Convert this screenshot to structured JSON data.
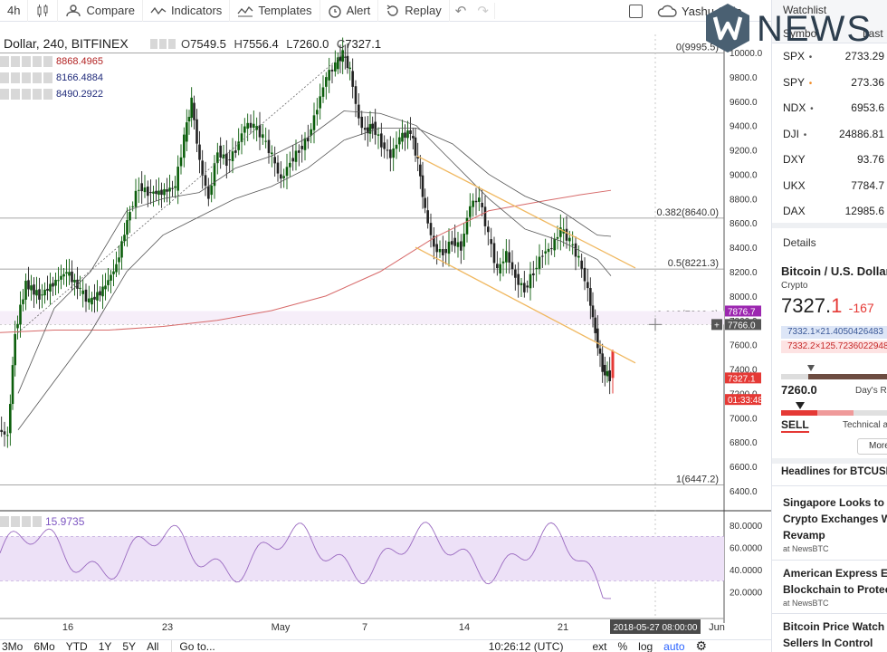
{
  "toolbar": {
    "interval": "4h",
    "compare": "Compare",
    "indicators": "Indicators",
    "templates": "Templates",
    "alert": "Alert",
    "replay": "Replay",
    "user": "Yashu Gola"
  },
  "logo_text": "NEWS",
  "legend": {
    "title": "Dollar, 240, BITFINEX",
    "open": "7549.5",
    "high": "7556.4",
    "low": "7260.0",
    "close": "7327.1",
    "ma_values": [
      {
        "value": "8868.4965",
        "color": "#b22222"
      },
      {
        "value": "8166.4884",
        "color": "#1f2a7a"
      },
      {
        "value": "8490.2922",
        "color": "#1f2a7a"
      }
    ],
    "rsi_value": "15.9735"
  },
  "price_axis": {
    "ticks": [
      "10000.0",
      "9800.0",
      "9600.0",
      "9400.0",
      "9200.0",
      "9000.0",
      "8800.0",
      "8600.0",
      "8400.0",
      "8200.0",
      "8000.0",
      "7800.0",
      "7600.0",
      "7400.0",
      "7200.0",
      "7000.0",
      "6800.0",
      "6600.0",
      "6400.0"
    ],
    "labels": [
      {
        "text": "7876.7",
        "color": "#9c27b0"
      },
      {
        "text": "7766.0",
        "color": "#555555"
      },
      {
        "text": "7327.1",
        "color": "#e53935"
      },
      {
        "text": "01:33:48",
        "color": "#e53935"
      }
    ]
  },
  "rsi_axis": {
    "ticks": [
      "80.0000",
      "60.0000",
      "40.0000",
      "20.0000"
    ]
  },
  "fib_levels": [
    {
      "label": "0(9995.5)",
      "price": 9995.5
    },
    {
      "label": "0.382(8640.0)",
      "price": 8640.0
    },
    {
      "label": "0.5(8221.3)",
      "price": 8221.3
    },
    {
      "label": "0.618(7802.6)",
      "price": 7802.6
    },
    {
      "label": "1(6447.2)",
      "price": 6447.2
    }
  ],
  "time_axis": {
    "labels": [
      "16",
      "23",
      "May",
      "7",
      "14",
      "21",
      "Jun"
    ],
    "crosshair_label": "2018-05-27 08:00:00"
  },
  "bottombar": {
    "ranges": [
      "3Mo",
      "6Mo",
      "YTD",
      "1Y",
      "5Y",
      "All"
    ],
    "goto": "Go to...",
    "clock": "10:26:12 (UTC)",
    "ext": "ext",
    "percent": "%",
    "log": "log",
    "auto": "auto"
  },
  "watchlist": {
    "title": "Watchlist",
    "col_symbol": "Symbol",
    "col_last": "Last",
    "rows": [
      {
        "symbol": "SPX",
        "last": "2733.29",
        "dot": "•",
        "dot_color": "#555"
      },
      {
        "symbol": "SPY",
        "last": "273.36",
        "dot": "•",
        "dot_color": "#f08c28"
      },
      {
        "symbol": "NDX",
        "last": "6953.6",
        "dot": "•",
        "dot_color": "#555"
      },
      {
        "symbol": "DJI",
        "last": "24886.81",
        "dot": "•",
        "dot_color": "#555"
      },
      {
        "symbol": "DXY",
        "last": "93.76",
        "dot": "",
        "dot_color": "#555"
      },
      {
        "symbol": "UKX",
        "last": "7784.7",
        "dot": "",
        "dot_color": "#555"
      },
      {
        "symbol": "DAX",
        "last": "12985.6",
        "dot": "",
        "dot_color": "#555"
      }
    ]
  },
  "details": {
    "header": "Details",
    "name": "Bitcoin / U.S. Dollar",
    "type": "Crypto",
    "price_main": "7327.",
    "price_last": "1",
    "change": "-167",
    "bid": "7332.1×21.4050426483",
    "ask": "7332.2×125.7236022948",
    "low": "7260.0",
    "days_range": "Day's Ra",
    "rating": "SELL",
    "technical": "Technical a",
    "more": "More"
  },
  "headlines": {
    "header": "Headlines for BTCUSD",
    "items": [
      {
        "line1": "Singapore Looks to A",
        "line2": "Crypto Exchanges W",
        "line3": "Revamp",
        "source": "at NewsBTC"
      },
      {
        "line1": "American Express E",
        "line2": "Blockchain to Protec",
        "line3": "",
        "source": "at NewsBTC"
      },
      {
        "line1": "Bitcoin Price Watch",
        "line2": "Sellers In Control",
        "line3": "",
        "source": ""
      }
    ]
  },
  "colors": {
    "up": "#0b5e0b",
    "down": "#222222",
    "rsi_band": "#ede1f7",
    "rsi_line": "#9a6ac0",
    "channel": "#f0b860",
    "ma_red": "#d76a6a",
    "ma_dark": "#555555",
    "red": "#e53935",
    "accent": "#2962ff"
  }
}
